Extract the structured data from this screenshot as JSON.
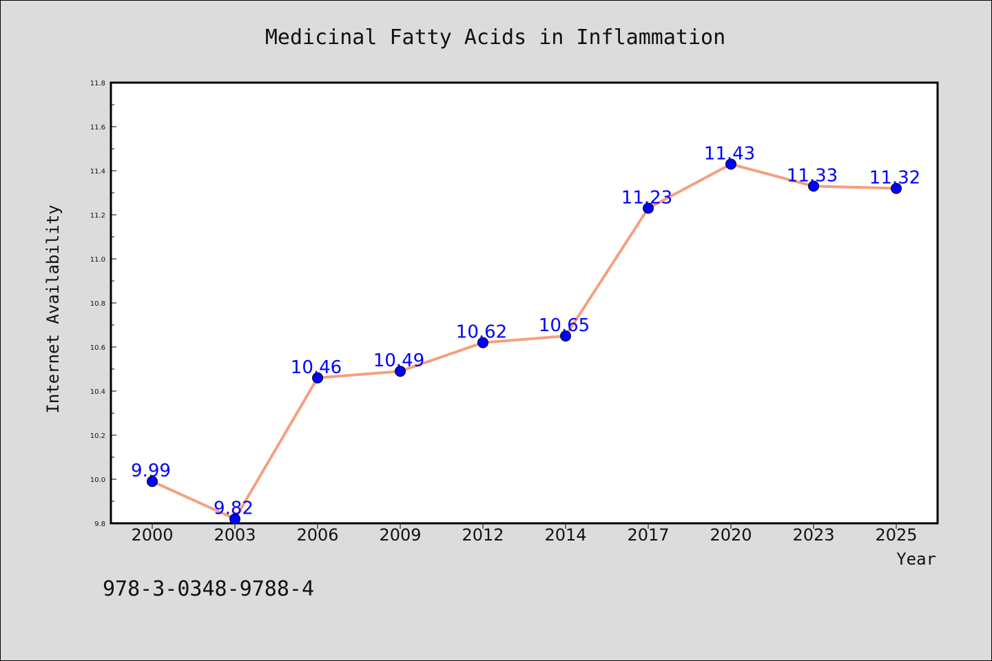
{
  "chart_data": {
    "type": "line",
    "title": "Medicinal Fatty Acids in Inflammation",
    "xlabel": "Year",
    "ylabel": "Internet Availability",
    "categories": [
      "2000",
      "2003",
      "2006",
      "2009",
      "2012",
      "2014",
      "2017",
      "2020",
      "2023",
      "2025"
    ],
    "series": [
      {
        "values": [
          9.99,
          9.82,
          10.46,
          10.49,
          10.62,
          10.65,
          11.23,
          11.43,
          11.33,
          11.32
        ],
        "data_labels": [
          "9.99",
          "9.82",
          "10.46",
          "10.49",
          "10.62",
          "10.65",
          "11.23",
          "11.43",
          "11.33",
          "11.32"
        ],
        "line_color": "#f4a07e",
        "marker_color": "#0000ff"
      }
    ],
    "ylim": [
      9.8,
      11.8
    ],
    "yticks": [
      "9.8",
      "10.0",
      "10.2",
      "10.4",
      "10.6",
      "10.8",
      "11.0",
      "11.2",
      "11.4",
      "11.6",
      "11.8"
    ],
    "grid": false,
    "legend": "none"
  },
  "annotation": {
    "isbn": "978-3-0348-9788-4"
  },
  "colors": {
    "background": "#dcdcdc",
    "plot_background": "#ffffff",
    "label_color": "#0000ff"
  }
}
